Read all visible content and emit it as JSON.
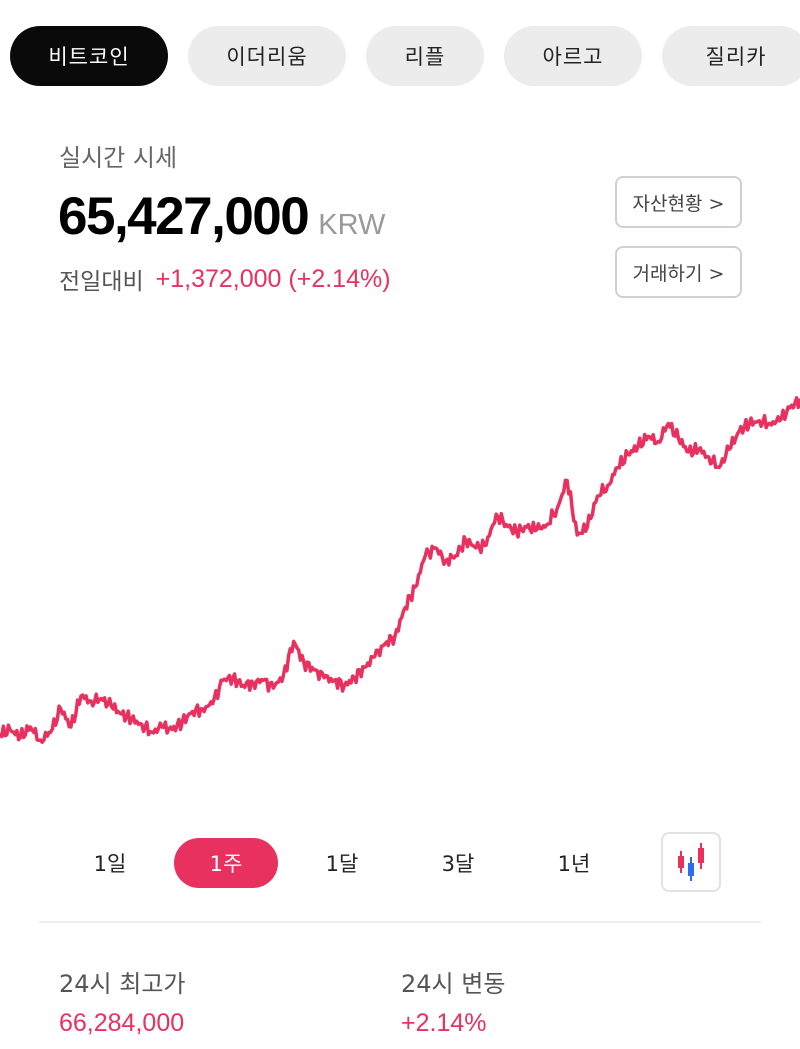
{
  "coin_tabs": [
    {
      "label": "비트코인",
      "active": true
    },
    {
      "label": "이더리움",
      "active": false
    },
    {
      "label": "리플",
      "active": false
    },
    {
      "label": "아르고",
      "active": false
    },
    {
      "label": "질리카",
      "active": false
    }
  ],
  "quote": {
    "realtime_label": "실시간 시세",
    "price": "65,427,000",
    "currency": "KRW",
    "change_label": "전일대비",
    "change_value": "+1,372,000 (+2.14%)"
  },
  "actions": {
    "assets_label": "자산현황 >",
    "trade_label": "거래하기 >"
  },
  "periods": [
    {
      "label": "1일",
      "active": false
    },
    {
      "label": "1주",
      "active": true
    },
    {
      "label": "1달",
      "active": false
    },
    {
      "label": "3달",
      "active": false
    },
    {
      "label": "1년",
      "active": false
    }
  ],
  "stats": {
    "high_label": "24시 최고가",
    "high_value": "66,284,000",
    "change_label": "24시 변동",
    "change_value": "+2.14%"
  },
  "colors": {
    "accent": "#e8315f",
    "candle_up": "#e8315f",
    "candle_down": "#2b6cf0"
  },
  "chart_data": {
    "type": "line",
    "series": [
      {
        "values": [
          60.3,
          60.5,
          60.2,
          60.6,
          60.1,
          60.4,
          61.3,
          60.6,
          61.8,
          61.6,
          61.7,
          61.4,
          61.1,
          60.9,
          60.7,
          60.4,
          60.6,
          60.5,
          60.8,
          61.2,
          61.3,
          61.5,
          62.4,
          62.5,
          62.2,
          62.3,
          62.4,
          62.1,
          62.6,
          63.9,
          63.1,
          62.8,
          62.5,
          62.4,
          62.2,
          62.5,
          62.9,
          63.3,
          63.8,
          64.1,
          65.2,
          66.0,
          67.2,
          67.5,
          67.0,
          67.2,
          67.8,
          67.5,
          67.6,
          68.8,
          68.4,
          68.1,
          68.3,
          68.2,
          68.4,
          69.0,
          70.1,
          68.0,
          68.3,
          69.5,
          69.9,
          70.6,
          71.1,
          71.4,
          71.8,
          71.6,
          72.3,
          71.7,
          71.2,
          71.3,
          71.0,
          70.6,
          71.3,
          72.0,
          72.3,
          72.4,
          72.3,
          72.4,
          72.9,
          73.2
        ]
      }
    ],
    "x_axis_shown": false,
    "y_axis_shown": false,
    "grid": false
  }
}
